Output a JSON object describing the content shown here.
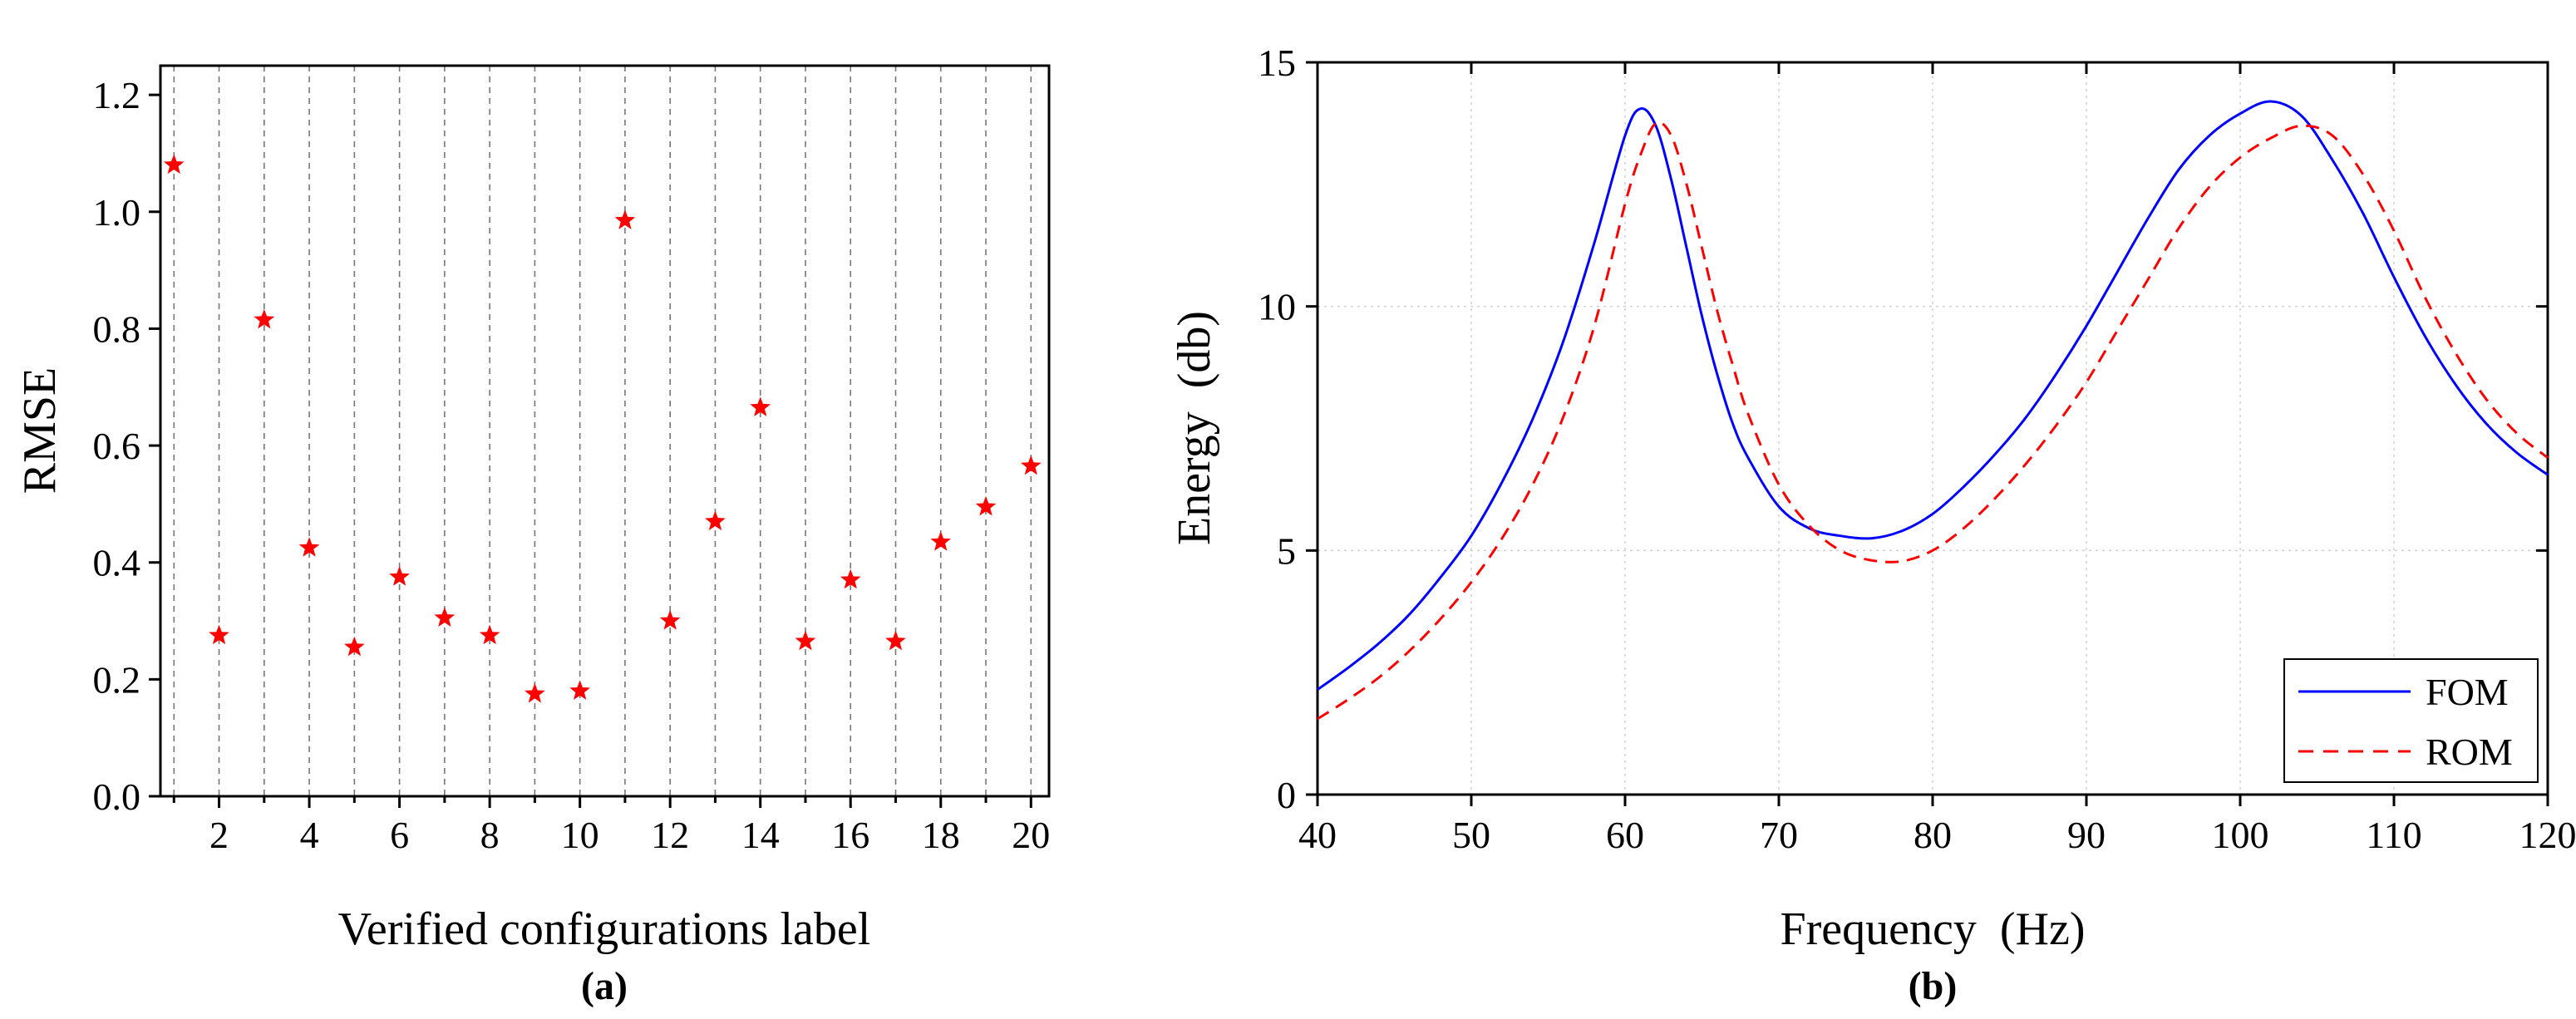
{
  "chart_data": [
    {
      "type": "scatter",
      "panel": "(a)",
      "title": "",
      "xlabel": "Verified configurations label",
      "ylabel": "RMSE",
      "xlim": [
        0.7,
        20.4
      ],
      "ylim": [
        0.0,
        1.25
      ],
      "x_ticks": [
        2,
        4,
        6,
        8,
        10,
        12,
        14,
        16,
        18,
        20
      ],
      "y_ticks": [
        0.0,
        0.2,
        0.4,
        0.6,
        0.8,
        1.0,
        1.2
      ],
      "y_tick_labels": [
        "0.0",
        "0.2",
        "0.4",
        "0.6",
        "0.8",
        "1.0",
        "1.2"
      ],
      "grid": "vertical dashed at each label",
      "marker": "star",
      "color": "#ff0000",
      "x": [
        1,
        2,
        3,
        4,
        5,
        6,
        7,
        8,
        9,
        10,
        11,
        12,
        13,
        14,
        15,
        16,
        17,
        18,
        19,
        20
      ],
      "values": [
        1.08,
        0.275,
        0.815,
        0.425,
        0.255,
        0.375,
        0.305,
        0.275,
        0.175,
        0.18,
        0.985,
        0.3,
        0.47,
        0.665,
        0.265,
        0.37,
        0.265,
        0.435,
        0.495,
        0.565
      ]
    },
    {
      "type": "line",
      "panel": "(b)",
      "title": "",
      "xlabel": "Frequency  (Hz)",
      "ylabel": "Energy  (db)",
      "xlim": [
        40,
        120
      ],
      "ylim": [
        0,
        15
      ],
      "x_ticks": [
        40,
        50,
        60,
        70,
        80,
        90,
        100,
        110,
        120
      ],
      "y_ticks": [
        0,
        5,
        10,
        15
      ],
      "grid": "dotted both axes",
      "legend": "bottom-right",
      "x": [
        40,
        42,
        44,
        46,
        48,
        50,
        52,
        54,
        56,
        58,
        60,
        61,
        62,
        63,
        64,
        65,
        66,
        67,
        68,
        70,
        72,
        74,
        76,
        78,
        80,
        82,
        84,
        86,
        88,
        90,
        92,
        94,
        96,
        98,
        100,
        102,
        104,
        106,
        108,
        110,
        112,
        114,
        116,
        118,
        120
      ],
      "series": [
        {
          "name": "FOM",
          "color": "#0000ff",
          "dash": "solid",
          "values": [
            2.15,
            2.6,
            3.1,
            3.7,
            4.45,
            5.3,
            6.4,
            7.7,
            9.3,
            11.3,
            13.5,
            14.05,
            13.7,
            12.6,
            11.2,
            9.8,
            8.6,
            7.6,
            6.9,
            5.9,
            5.45,
            5.3,
            5.25,
            5.4,
            5.75,
            6.3,
            6.95,
            7.7,
            8.6,
            9.6,
            10.7,
            11.8,
            12.8,
            13.5,
            13.95,
            14.2,
            13.9,
            13.0,
            11.9,
            10.6,
            9.4,
            8.4,
            7.6,
            7.0,
            6.55
          ]
        },
        {
          "name": "ROM",
          "color": "#ff0000",
          "dash": "dashed",
          "values": [
            1.55,
            1.95,
            2.4,
            2.95,
            3.6,
            4.35,
            5.25,
            6.35,
            7.75,
            9.6,
            12.1,
            13.1,
            13.75,
            13.5,
            12.5,
            11.2,
            9.9,
            8.8,
            7.8,
            6.35,
            5.5,
            5.0,
            4.8,
            4.78,
            5.0,
            5.45,
            6.05,
            6.75,
            7.55,
            8.45,
            9.5,
            10.55,
            11.6,
            12.45,
            13.05,
            13.45,
            13.7,
            13.5,
            12.7,
            11.55,
            10.2,
            9.05,
            8.1,
            7.4,
            6.9
          ]
        }
      ]
    }
  ]
}
